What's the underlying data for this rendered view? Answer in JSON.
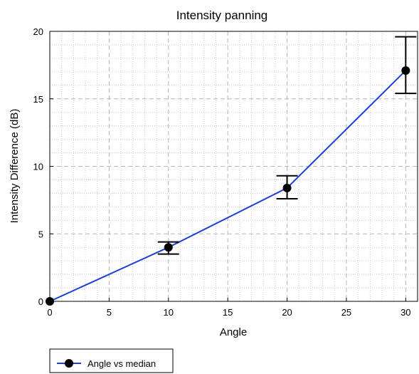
{
  "chart_data": {
    "type": "line",
    "title": "Intensity panning",
    "xlabel": "Angle",
    "ylabel": "Intensity Difference (dB)",
    "xlim": [
      0,
      31
    ],
    "ylim": [
      0,
      20
    ],
    "xticks": [
      0,
      5,
      10,
      15,
      20,
      25,
      30
    ],
    "yticks": [
      0,
      5,
      10,
      15,
      20
    ],
    "grid": true,
    "legend_position": "below-left",
    "series": [
      {
        "name": "Angle vs median",
        "color": "#1f3fd6",
        "x": [
          0,
          10,
          20,
          30
        ],
        "y": [
          0,
          4.0,
          8.4,
          17.1
        ],
        "error_low": [
          0,
          3.5,
          7.6,
          15.4
        ],
        "error_high": [
          0,
          4.4,
          9.3,
          19.6
        ]
      }
    ]
  }
}
